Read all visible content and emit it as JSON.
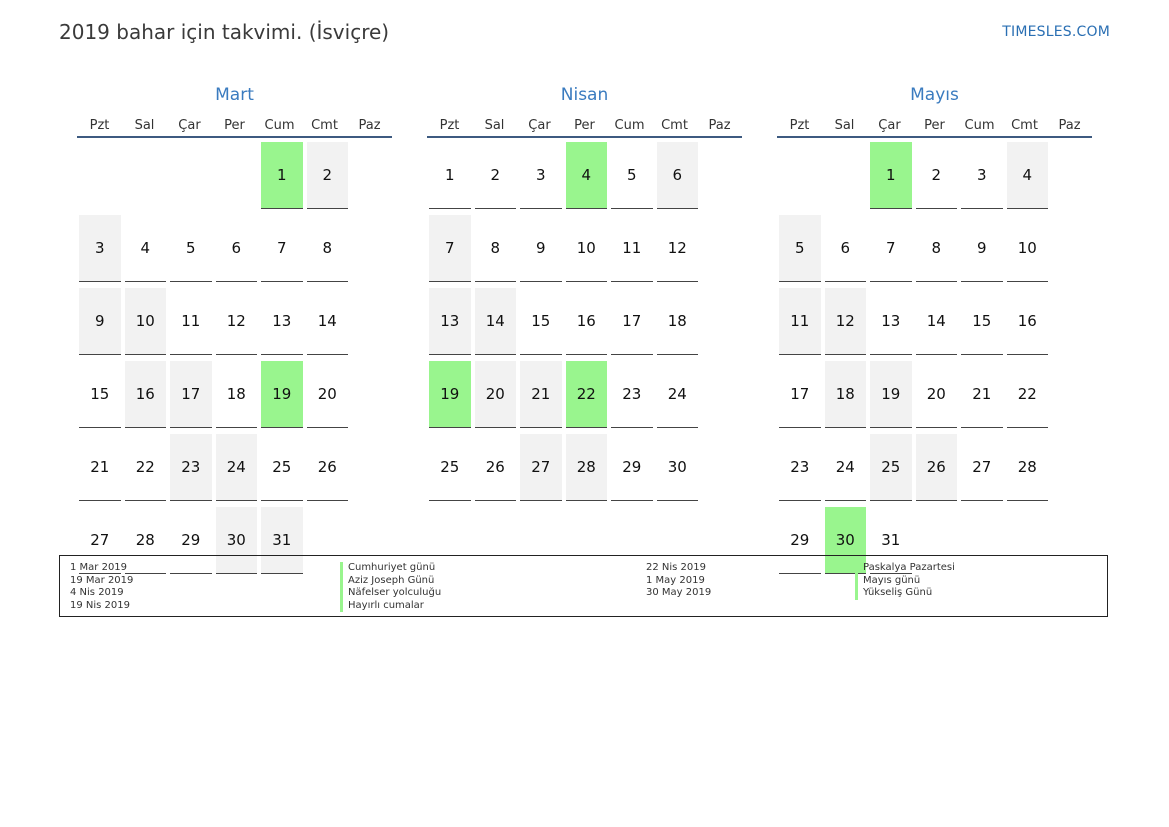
{
  "header": {
    "title": "2019 bahar için takvimi. (İsviçre)",
    "brand": "TIMESLES.COM"
  },
  "colors": {
    "holiday": "#99f58e",
    "weekend": "#f2f2f2",
    "accent": "#3a7bbf"
  },
  "weekdays": [
    "Pzt",
    "Sal",
    "Çar",
    "Per",
    "Cum",
    "Cmt",
    "Paz"
  ],
  "months": [
    {
      "name": "Mart",
      "offset": 4,
      "days": 31,
      "holidays": [
        1,
        19
      ]
    },
    {
      "name": "Nisan",
      "offset": 0,
      "days": 30,
      "holidays": [
        4,
        19,
        22
      ]
    },
    {
      "name": "Mayıs",
      "offset": 2,
      "days": 31,
      "holidays": [
        1,
        30
      ]
    }
  ],
  "legend": {
    "col1_dates": [
      "1 Mar 2019",
      "19 Mar 2019",
      "4 Nis 2019",
      "19 Nis 2019"
    ],
    "col1_names": [
      "Cumhuriyet günü",
      "Aziz Joseph Günü",
      "Näfelser yolculuğu",
      "Hayırlı cumalar"
    ],
    "col2_dates": [
      "22 Nis 2019",
      "1 May 2019",
      "30 May 2019"
    ],
    "col2_names": [
      "Paskalya Pazartesi",
      "Mayıs günü",
      "Yükseliş Günü"
    ]
  }
}
